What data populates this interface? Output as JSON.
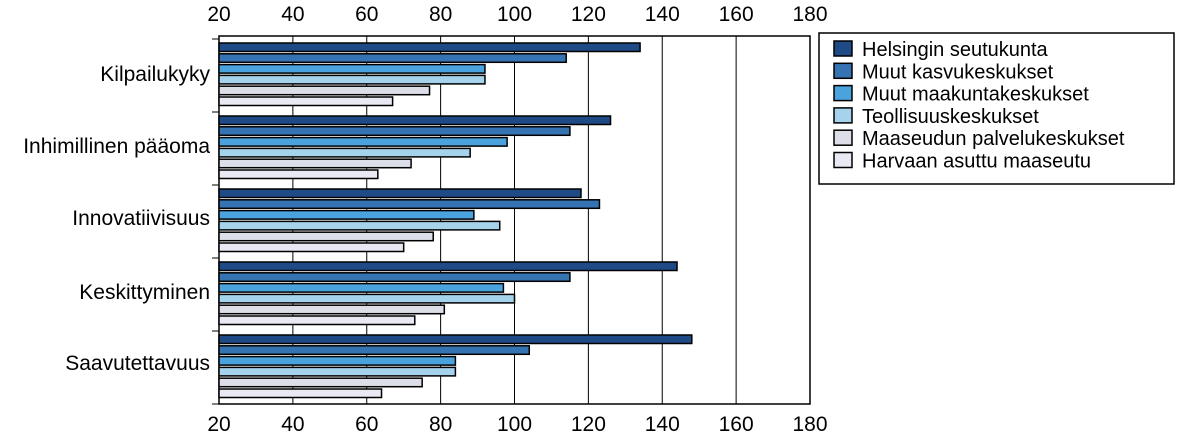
{
  "chart_data": {
    "type": "bar",
    "orientation": "horizontal",
    "title": "",
    "xlabel": "",
    "ylabel": "",
    "xlim": [
      20,
      180
    ],
    "x_ticks": [
      "20",
      "40",
      "60",
      "80",
      "100",
      "120",
      "140",
      "160",
      "180"
    ],
    "grid": "vertical",
    "legend_position": "right",
    "categories": [
      "Kilpailukyky",
      "Inhimillinen pääoma",
      "Innovatiivisuus",
      "Keskittyminen",
      "Saavutettavuus"
    ],
    "series": [
      {
        "name": "Helsingin seutukunta",
        "color": "#1e4a85",
        "values": [
          134,
          126,
          118,
          144,
          148
        ]
      },
      {
        "name": "Muut kasvukeskukset",
        "color": "#3673b2",
        "values": [
          114,
          115,
          123,
          115,
          104
        ]
      },
      {
        "name": "Muut maakuntakeskukset",
        "color": "#4aa3dd",
        "values": [
          92,
          98,
          89,
          97,
          84
        ]
      },
      {
        "name": "Teollisuuskeskukset",
        "color": "#a6d3ec",
        "values": [
          92,
          88,
          96,
          100,
          84
        ]
      },
      {
        "name": "Maaseudun palvelukeskukset",
        "color": "#dcdfe8",
        "values": [
          77,
          72,
          78,
          81,
          75
        ]
      },
      {
        "name": "Harvaan asuttu maaseutu",
        "color": "#e8e9f3",
        "values": [
          67,
          63,
          70,
          73,
          64
        ]
      }
    ]
  }
}
